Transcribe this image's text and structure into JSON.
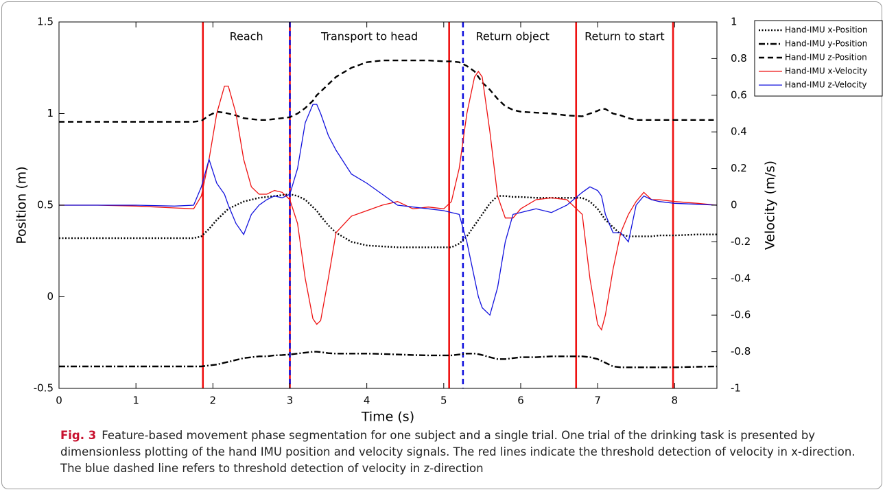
{
  "chart_data": {
    "type": "line",
    "x_label": "Time (s)",
    "y_label": "Position (m)",
    "y2_label": "Velocity (m/s)",
    "x": [
      0,
      0.5,
      1.0,
      1.5,
      1.75,
      1.85,
      1.95,
      2.05,
      2.15,
      2.2,
      2.3,
      2.4,
      2.5,
      2.6,
      2.7,
      2.8,
      2.9,
      3.0,
      3.1,
      3.2,
      3.3,
      3.35,
      3.4,
      3.5,
      3.6,
      3.8,
      4.0,
      4.2,
      4.4,
      4.6,
      4.8,
      5.0,
      5.1,
      5.2,
      5.3,
      5.4,
      5.45,
      5.5,
      5.6,
      5.7,
      5.8,
      5.9,
      6.0,
      6.2,
      6.4,
      6.6,
      6.8,
      6.9,
      7.0,
      7.05,
      7.1,
      7.2,
      7.3,
      7.4,
      7.5,
      7.6,
      7.7,
      7.8,
      8.0,
      8.3,
      8.55
    ],
    "series": [
      {
        "name": "Hand-IMU x-Position",
        "color": "#000000",
        "line_style": "dotted",
        "axis": "y",
        "values": [
          0.32,
          0.32,
          0.32,
          0.32,
          0.32,
          0.33,
          0.37,
          0.42,
          0.46,
          0.48,
          0.5,
          0.52,
          0.53,
          0.54,
          0.545,
          0.55,
          0.555,
          0.56,
          0.55,
          0.53,
          0.49,
          0.47,
          0.44,
          0.39,
          0.35,
          0.3,
          0.28,
          0.275,
          0.27,
          0.27,
          0.27,
          0.27,
          0.27,
          0.29,
          0.33,
          0.39,
          0.42,
          0.45,
          0.51,
          0.55,
          0.55,
          0.545,
          0.545,
          0.54,
          0.54,
          0.54,
          0.54,
          0.52,
          0.48,
          0.45,
          0.42,
          0.38,
          0.34,
          0.33,
          0.33,
          0.33,
          0.33,
          0.335,
          0.335,
          0.34,
          0.34
        ]
      },
      {
        "name": "Hand-IMU y-Position",
        "color": "#000000",
        "line_style": "dashdot",
        "axis": "y",
        "values": [
          -0.38,
          -0.38,
          -0.38,
          -0.38,
          -0.38,
          -0.38,
          -0.375,
          -0.37,
          -0.36,
          -0.355,
          -0.345,
          -0.335,
          -0.33,
          -0.325,
          -0.325,
          -0.32,
          -0.318,
          -0.315,
          -0.31,
          -0.305,
          -0.3,
          -0.3,
          -0.302,
          -0.308,
          -0.31,
          -0.31,
          -0.31,
          -0.312,
          -0.315,
          -0.318,
          -0.32,
          -0.32,
          -0.32,
          -0.315,
          -0.31,
          -0.31,
          -0.313,
          -0.318,
          -0.33,
          -0.34,
          -0.34,
          -0.335,
          -0.33,
          -0.33,
          -0.325,
          -0.325,
          -0.325,
          -0.33,
          -0.34,
          -0.35,
          -0.36,
          -0.38,
          -0.385,
          -0.385,
          -0.385,
          -0.385,
          -0.385,
          -0.385,
          -0.385,
          -0.382,
          -0.38
        ]
      },
      {
        "name": "Hand-IMU z-Position",
        "color": "#000000",
        "line_style": "dashed",
        "axis": "y",
        "values": [
          0.955,
          0.955,
          0.955,
          0.955,
          0.955,
          0.96,
          0.99,
          1.01,
          1.005,
          1.0,
          0.99,
          0.975,
          0.97,
          0.965,
          0.965,
          0.97,
          0.975,
          0.98,
          1.0,
          1.03,
          1.07,
          1.1,
          1.12,
          1.16,
          1.2,
          1.25,
          1.28,
          1.29,
          1.29,
          1.29,
          1.29,
          1.285,
          1.285,
          1.28,
          1.26,
          1.23,
          1.2,
          1.17,
          1.13,
          1.08,
          1.04,
          1.02,
          1.01,
          1.005,
          1.0,
          0.99,
          0.985,
          1.0,
          1.015,
          1.025,
          1.025,
          1.0,
          0.99,
          0.975,
          0.965,
          0.965,
          0.965,
          0.965,
          0.965,
          0.965,
          0.965
        ]
      },
      {
        "name": "Hand-IMU x-Velocity",
        "color": "#ee1111",
        "line_style": "solid",
        "axis": "y2",
        "values": [
          0,
          0,
          -0.005,
          -0.015,
          -0.02,
          0.05,
          0.25,
          0.5,
          0.65,
          0.65,
          0.5,
          0.25,
          0.1,
          0.06,
          0.06,
          0.08,
          0.07,
          0.03,
          -0.1,
          -0.4,
          -0.62,
          -0.65,
          -0.63,
          -0.4,
          -0.15,
          -0.06,
          -0.03,
          0.0,
          0.02,
          -0.02,
          -0.01,
          -0.02,
          0.02,
          0.2,
          0.5,
          0.7,
          0.73,
          0.7,
          0.4,
          0.05,
          -0.07,
          -0.07,
          -0.02,
          0.03,
          0.04,
          0.03,
          -0.05,
          -0.4,
          -0.65,
          -0.68,
          -0.6,
          -0.35,
          -0.15,
          -0.05,
          0.02,
          0.07,
          0.03,
          0.03,
          0.02,
          0.01,
          0.0
        ]
      },
      {
        "name": "Hand-IMU z-Velocity",
        "color": "#1111dd",
        "line_style": "solid",
        "axis": "y2",
        "values": [
          0,
          0,
          0,
          -0.005,
          0.0,
          0.1,
          0.25,
          0.12,
          0.06,
          0.0,
          -0.1,
          -0.16,
          -0.05,
          0.0,
          0.03,
          0.05,
          0.04,
          0.06,
          0.2,
          0.45,
          0.55,
          0.55,
          0.5,
          0.38,
          0.3,
          0.17,
          0.12,
          0.06,
          0.0,
          -0.01,
          -0.02,
          -0.03,
          -0.04,
          -0.05,
          -0.2,
          -0.4,
          -0.5,
          -0.56,
          -0.6,
          -0.45,
          -0.2,
          -0.05,
          -0.04,
          -0.02,
          -0.04,
          0.0,
          0.07,
          0.1,
          0.08,
          0.05,
          -0.05,
          -0.15,
          -0.15,
          -0.2,
          0.0,
          0.05,
          0.03,
          0.02,
          0.01,
          0.005,
          0.0
        ]
      }
    ],
    "boundaries": [
      {
        "x": 1.87,
        "color": "#ee1111",
        "line_style": "solid"
      },
      {
        "x": 3.0,
        "color": "#ee1111",
        "line_style": "solid"
      },
      {
        "x": 5.07,
        "color": "#ee1111",
        "line_style": "solid"
      },
      {
        "x": 6.72,
        "color": "#ee1111",
        "line_style": "solid"
      },
      {
        "x": 7.98,
        "color": "#ee1111",
        "line_style": "solid"
      },
      {
        "x": 3.0,
        "color": "#1111dd",
        "line_style": "dashed"
      },
      {
        "x": 5.25,
        "color": "#1111dd",
        "line_style": "dashed"
      }
    ],
    "phases": [
      "Reach",
      "Transport to head",
      "Return object",
      "Return to start"
    ],
    "xlim": [
      0,
      8.55
    ],
    "xticks": [
      0,
      1,
      2,
      3,
      4,
      5,
      6,
      7,
      8
    ],
    "ylim": [
      -0.5,
      1.5
    ],
    "yticks": [
      -0.5,
      0,
      0.5,
      1,
      1.5
    ],
    "y2lim": [
      -1,
      1
    ],
    "y2ticks": [
      -1,
      -0.8,
      -0.6,
      -0.4,
      -0.2,
      0,
      0.2,
      0.4,
      0.6,
      0.8,
      1
    ],
    "grid": false,
    "legend": "outside-top-right"
  },
  "caption": {
    "label": "Fig. 3",
    "text": "Feature-based movement phase segmentation for one subject and a single trial. One trial of the drinking task is presented by dimensionless plotting of the hand IMU position and velocity signals. The red lines indicate the threshold detection of velocity in x-direction. The blue dashed line refers to threshold detection of velocity in z-direction"
  }
}
